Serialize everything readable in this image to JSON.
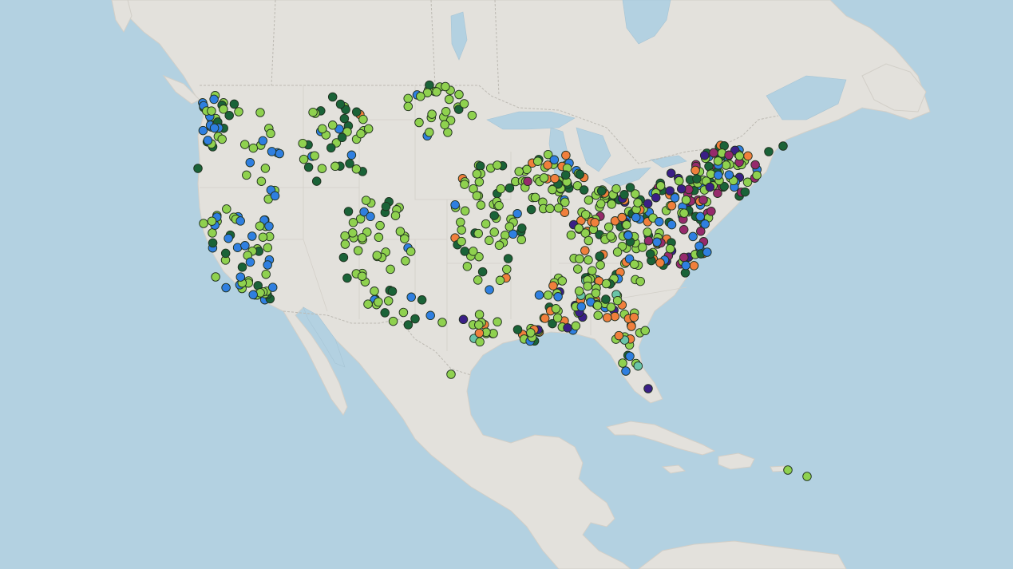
{
  "map": {
    "legend": [],
    "colors": {
      "water": "#b3d1e1",
      "land": "#e3e1dc",
      "border": "#bcb9b2",
      "marker_outline": "#20301f"
    },
    "categories": [
      {
        "key": "lime",
        "color": "#8fd14f"
      },
      {
        "key": "forest",
        "color": "#1a6338"
      },
      {
        "key": "blue",
        "color": "#2f7fe0"
      },
      {
        "key": "orange",
        "color": "#f07f3c"
      },
      {
        "key": "magenta",
        "color": "#962a6c"
      },
      {
        "key": "indigo",
        "color": "#3a1f86"
      },
      {
        "key": "teal",
        "color": "#69c4a8"
      }
    ],
    "point_count_visible": "dense"
  }
}
